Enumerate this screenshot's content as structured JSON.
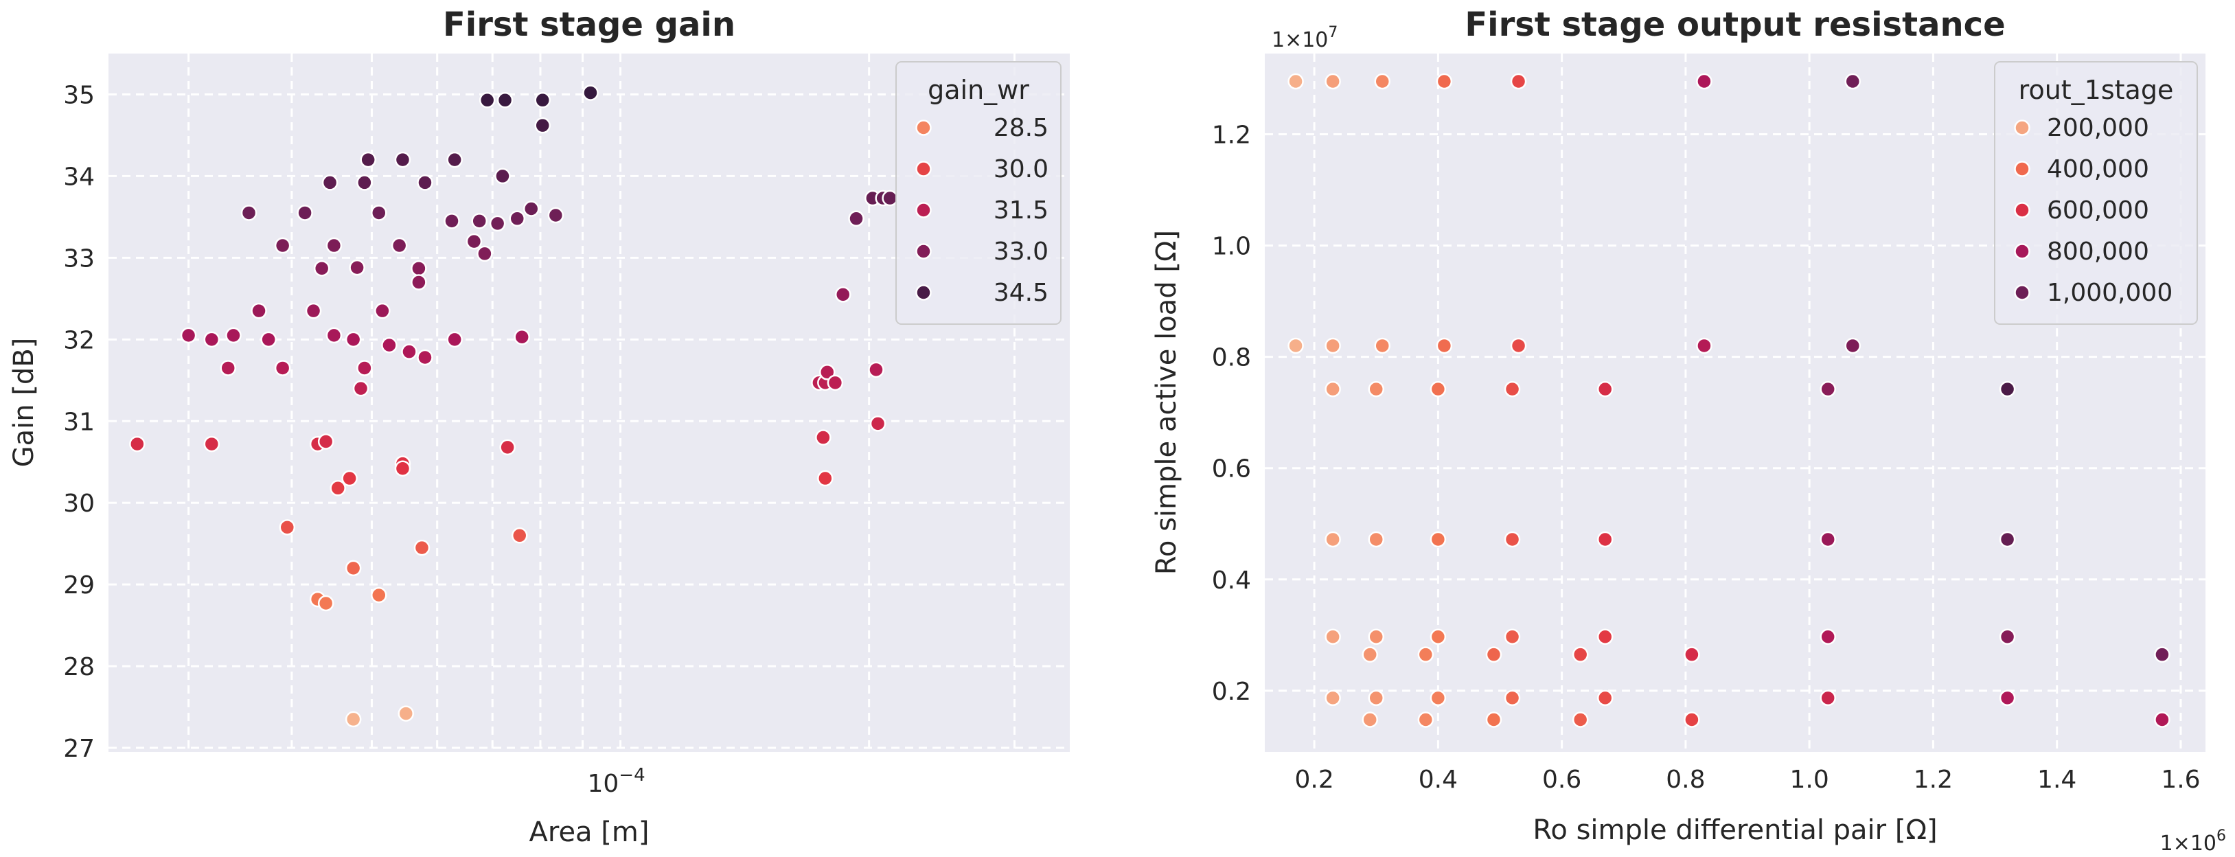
{
  "chart_data": [
    {
      "type": "scatter",
      "title": "First stage gain",
      "xlabel": "Area [m]",
      "ylabel": "Gain [dB]",
      "xscale": "log",
      "xlim": [
        2.4e-05,
        0.00035
      ],
      "ylim": [
        26.95,
        35.5
      ],
      "yticks": [
        27,
        28,
        29,
        30,
        31,
        32,
        33,
        34,
        35
      ],
      "xticks": [
        {
          "value": 0.0001,
          "label": "10",
          "exp": "−4"
        }
      ],
      "hue": "gain_wr",
      "legend": {
        "title": "gain_wr",
        "position": "top-right",
        "entries": [
          {
            "label": "28.5",
            "value": 28.5
          },
          {
            "label": "30.0",
            "value": 30.0
          },
          {
            "label": "31.5",
            "value": 31.5
          },
          {
            "label": "33.0",
            "value": 33.0
          },
          {
            "label": "34.5",
            "value": 34.5
          }
        ]
      },
      "points": [
        {
          "x": 2.6e-05,
          "y": 30.72
        },
        {
          "x": 3e-05,
          "y": 32.05
        },
        {
          "x": 3.2e-05,
          "y": 30.72
        },
        {
          "x": 3.2e-05,
          "y": 32.0
        },
        {
          "x": 3.35e-05,
          "y": 31.65
        },
        {
          "x": 3.4e-05,
          "y": 32.05
        },
        {
          "x": 3.55e-05,
          "y": 33.55
        },
        {
          "x": 3.65e-05,
          "y": 32.35
        },
        {
          "x": 3.75e-05,
          "y": 32.0
        },
        {
          "x": 3.9e-05,
          "y": 33.15
        },
        {
          "x": 3.9e-05,
          "y": 31.65
        },
        {
          "x": 3.95e-05,
          "y": 29.7
        },
        {
          "x": 4.15e-05,
          "y": 33.55
        },
        {
          "x": 4.25e-05,
          "y": 32.35
        },
        {
          "x": 4.3e-05,
          "y": 30.72
        },
        {
          "x": 4.35e-05,
          "y": 32.87
        },
        {
          "x": 4.3e-05,
          "y": 28.82
        },
        {
          "x": 4.4e-05,
          "y": 30.75
        },
        {
          "x": 4.4e-05,
          "y": 28.77
        },
        {
          "x": 4.45e-05,
          "y": 33.92
        },
        {
          "x": 4.5e-05,
          "y": 33.15
        },
        {
          "x": 4.5e-05,
          "y": 32.05
        },
        {
          "x": 4.55e-05,
          "y": 30.18
        },
        {
          "x": 4.7e-05,
          "y": 30.3
        },
        {
          "x": 4.75e-05,
          "y": 32.0
        },
        {
          "x": 4.75e-05,
          "y": 29.2
        },
        {
          "x": 4.75e-05,
          "y": 27.35
        },
        {
          "x": 4.8e-05,
          "y": 32.88
        },
        {
          "x": 4.85e-05,
          "y": 31.4
        },
        {
          "x": 4.9e-05,
          "y": 33.92
        },
        {
          "x": 4.9e-05,
          "y": 31.65
        },
        {
          "x": 4.95e-05,
          "y": 34.2
        },
        {
          "x": 5.1e-05,
          "y": 33.55
        },
        {
          "x": 5.1e-05,
          "y": 28.87
        },
        {
          "x": 5.15e-05,
          "y": 32.35
        },
        {
          "x": 5.25e-05,
          "y": 31.93
        },
        {
          "x": 5.4e-05,
          "y": 33.15
        },
        {
          "x": 5.45e-05,
          "y": 34.2
        },
        {
          "x": 5.45e-05,
          "y": 30.48
        },
        {
          "x": 5.45e-05,
          "y": 30.42
        },
        {
          "x": 5.5e-05,
          "y": 27.42
        },
        {
          "x": 5.55e-05,
          "y": 31.85
        },
        {
          "x": 5.7e-05,
          "y": 32.87
        },
        {
          "x": 5.7e-05,
          "y": 32.7
        },
        {
          "x": 5.75e-05,
          "y": 29.45
        },
        {
          "x": 5.8e-05,
          "y": 33.92
        },
        {
          "x": 5.8e-05,
          "y": 31.78
        },
        {
          "x": 6.25e-05,
          "y": 33.45
        },
        {
          "x": 6.3e-05,
          "y": 34.2
        },
        {
          "x": 6.3e-05,
          "y": 32.0
        },
        {
          "x": 6.65e-05,
          "y": 33.2
        },
        {
          "x": 6.75e-05,
          "y": 33.45
        },
        {
          "x": 6.85e-05,
          "y": 33.05
        },
        {
          "x": 6.9e-05,
          "y": 34.93
        },
        {
          "x": 7.1e-05,
          "y": 33.42
        },
        {
          "x": 7.2e-05,
          "y": 34.0
        },
        {
          "x": 7.25e-05,
          "y": 34.93
        },
        {
          "x": 7.3e-05,
          "y": 30.68
        },
        {
          "x": 7.5e-05,
          "y": 33.48
        },
        {
          "x": 7.55e-05,
          "y": 29.6
        },
        {
          "x": 7.6e-05,
          "y": 32.03
        },
        {
          "x": 7.8e-05,
          "y": 33.6
        },
        {
          "x": 8.05e-05,
          "y": 34.93
        },
        {
          "x": 8.05e-05,
          "y": 34.62
        },
        {
          "x": 8.35e-05,
          "y": 33.52
        },
        {
          "x": 9.2e-05,
          "y": 35.02
        },
        {
          "x": 0.000174,
          "y": 31.47
        },
        {
          "x": 0.000176,
          "y": 30.8
        },
        {
          "x": 0.000177,
          "y": 30.3
        },
        {
          "x": 0.000177,
          "y": 31.47
        },
        {
          "x": 0.000178,
          "y": 31.6
        },
        {
          "x": 0.000182,
          "y": 31.47
        },
        {
          "x": 0.000186,
          "y": 32.55
        },
        {
          "x": 0.000193,
          "y": 33.48
        },
        {
          "x": 0.000202,
          "y": 33.73
        },
        {
          "x": 0.000204,
          "y": 31.63
        },
        {
          "x": 0.000205,
          "y": 30.97
        },
        {
          "x": 0.000208,
          "y": 33.73
        },
        {
          "x": 0.000212,
          "y": 33.73
        }
      ]
    },
    {
      "type": "scatter",
      "title": "First stage output resistance",
      "xlabel": "Ro simple differential pair [Ω]",
      "ylabel": "Ro simple active load [Ω]",
      "xlim": [
        0.12,
        1.64
      ],
      "ylim": [
        0.09,
        1.345
      ],
      "x_multiplier": "1×10",
      "x_multiplier_exp": "6",
      "y_multiplier": "1×10",
      "y_multiplier_exp": "7",
      "xticks": [
        0.2,
        0.4,
        0.6,
        0.8,
        1.0,
        1.2,
        1.4,
        1.6
      ],
      "xtick_labels": [
        "0.2",
        "0.4",
        "0.6",
        "0.8",
        "1.0",
        "1.2",
        "1.4",
        "1.6"
      ],
      "yticks": [
        0.2,
        0.4,
        0.6,
        0.8,
        1.0,
        1.2
      ],
      "ytick_labels": [
        "0.2",
        "0.4",
        "0.6",
        "0.8",
        "1.0",
        "1.2"
      ],
      "hue": "rout_1stage",
      "legend": {
        "title": "rout_1stage",
        "position": "top-right",
        "entries": [
          {
            "label": "200,000",
            "value": 200000
          },
          {
            "label": "400,000",
            "value": 400000
          },
          {
            "label": "600,000",
            "value": 600000
          },
          {
            "label": "800,000",
            "value": 800000
          },
          {
            "label": "1,000,000",
            "value": 1000000
          }
        ]
      },
      "points": [
        {
          "x": 0.17,
          "y": 1.295
        },
        {
          "x": 0.23,
          "y": 1.295
        },
        {
          "x": 0.31,
          "y": 1.295
        },
        {
          "x": 0.41,
          "y": 1.295
        },
        {
          "x": 0.53,
          "y": 1.295
        },
        {
          "x": 0.83,
          "y": 1.295
        },
        {
          "x": 1.07,
          "y": 1.295
        },
        {
          "x": 0.17,
          "y": 0.82
        },
        {
          "x": 0.23,
          "y": 0.82
        },
        {
          "x": 0.31,
          "y": 0.82
        },
        {
          "x": 0.41,
          "y": 0.82
        },
        {
          "x": 0.53,
          "y": 0.82
        },
        {
          "x": 0.83,
          "y": 0.82
        },
        {
          "x": 1.07,
          "y": 0.82
        },
        {
          "x": 0.23,
          "y": 0.742
        },
        {
          "x": 0.3,
          "y": 0.742
        },
        {
          "x": 0.4,
          "y": 0.742
        },
        {
          "x": 0.52,
          "y": 0.742
        },
        {
          "x": 0.67,
          "y": 0.742
        },
        {
          "x": 1.03,
          "y": 0.742
        },
        {
          "x": 1.32,
          "y": 0.742
        },
        {
          "x": 0.23,
          "y": 0.472
        },
        {
          "x": 0.3,
          "y": 0.472
        },
        {
          "x": 0.4,
          "y": 0.472
        },
        {
          "x": 0.52,
          "y": 0.472
        },
        {
          "x": 0.67,
          "y": 0.472
        },
        {
          "x": 1.03,
          "y": 0.472
        },
        {
          "x": 1.32,
          "y": 0.472
        },
        {
          "x": 0.23,
          "y": 0.297
        },
        {
          "x": 0.3,
          "y": 0.297
        },
        {
          "x": 0.4,
          "y": 0.297
        },
        {
          "x": 0.52,
          "y": 0.297
        },
        {
          "x": 0.67,
          "y": 0.297
        },
        {
          "x": 1.03,
          "y": 0.297
        },
        {
          "x": 1.32,
          "y": 0.297
        },
        {
          "x": 0.29,
          "y": 0.265
        },
        {
          "x": 0.38,
          "y": 0.265
        },
        {
          "x": 0.49,
          "y": 0.265
        },
        {
          "x": 0.63,
          "y": 0.265
        },
        {
          "x": 0.81,
          "y": 0.265
        },
        {
          "x": 1.57,
          "y": 0.265
        },
        {
          "x": 0.23,
          "y": 0.187
        },
        {
          "x": 0.3,
          "y": 0.187
        },
        {
          "x": 0.4,
          "y": 0.187
        },
        {
          "x": 0.52,
          "y": 0.187
        },
        {
          "x": 0.67,
          "y": 0.187
        },
        {
          "x": 1.03,
          "y": 0.187
        },
        {
          "x": 1.32,
          "y": 0.187
        },
        {
          "x": 0.29,
          "y": 0.148
        },
        {
          "x": 0.38,
          "y": 0.148
        },
        {
          "x": 0.49,
          "y": 0.148
        },
        {
          "x": 0.63,
          "y": 0.148
        },
        {
          "x": 0.81,
          "y": 0.148
        },
        {
          "x": 1.57,
          "y": 0.148
        }
      ]
    }
  ],
  "colormap": [
    "#f6b48f",
    "#f37651",
    "#e13342",
    "#ad1759",
    "#701f57",
    "#35193e"
  ]
}
